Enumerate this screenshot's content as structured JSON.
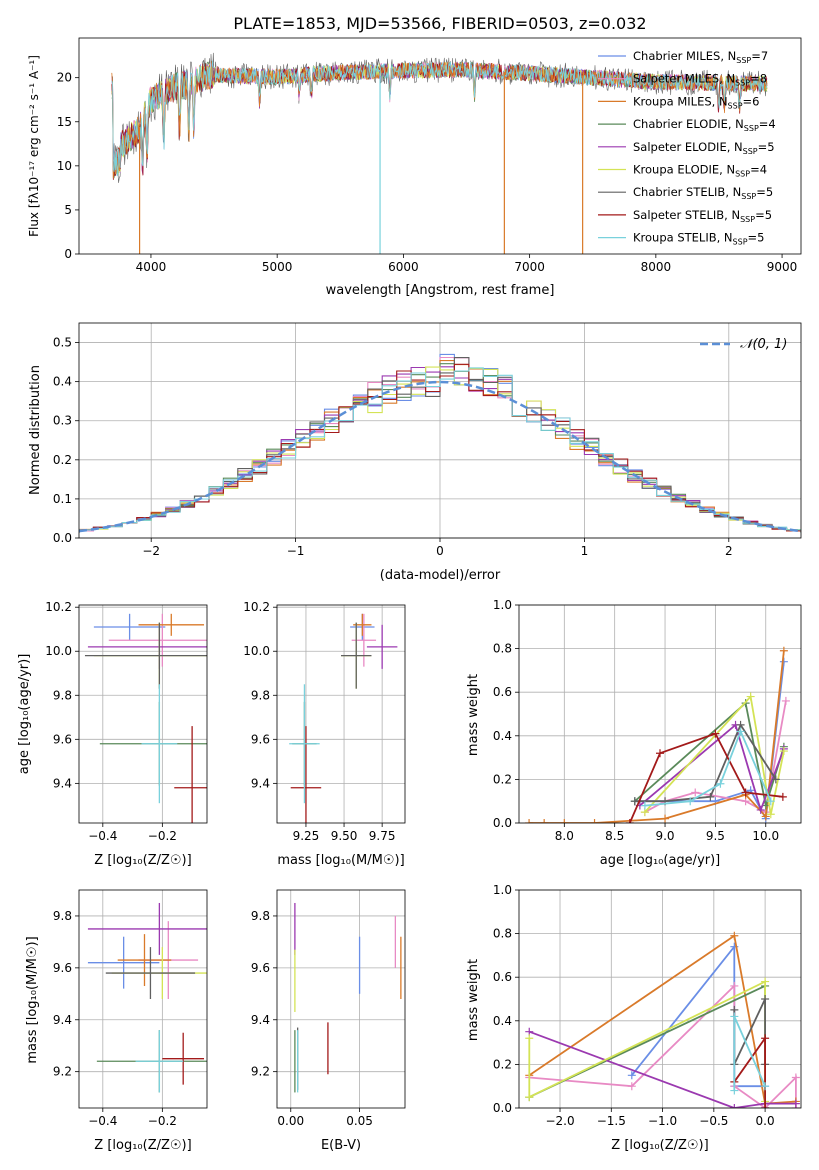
{
  "figure": {
    "title": "PLATE=1853, MJD=53566, FIBERID=0503, z=0.032",
    "colors": [
      "#6a8ee6",
      "#e88ac4",
      "#d97a2a",
      "#5a8a5a",
      "#9b39b0",
      "#d4e356",
      "#606060",
      "#a31a1a",
      "#79d1dc"
    ]
  },
  "panels": {
    "spectrum": {
      "xlabel": "wavelength [Angstrom, rest frame]",
      "ylabel": "Flux [fλ10⁻¹⁷ erg cm⁻² s⁻¹ A⁻¹]",
      "legend": [
        "Chabrier MILES, N_SSP=7",
        "Salpeter MILES, N_SSP=8",
        "Kroupa MILES, N_SSP=6",
        "Chabrier ELODIE, N_SSP=4",
        "Salpeter ELODIE, N_SSP=5",
        "Kroupa ELODIE, N_SSP=4",
        "Chabrier STELIB, N_SSP=5",
        "Salpeter STELIB, N_SSP=5",
        "Kroupa STELIB, N_SSP=5"
      ]
    },
    "hist": {
      "xlabel": "(data-model)/error",
      "ylabel": "Normed distribution",
      "legend": "𝒩(0, 1)"
    },
    "age_z": {
      "xlabel": "Z [log₁₀(Z/Z☉)]",
      "ylabel": "age  [log₁₀(age/yr)]"
    },
    "age_mass": {
      "xlabel": "mass [log₁₀(M/M☉)]"
    },
    "mw_age": {
      "xlabel": "age  [log₁₀(age/yr)]",
      "ylabel": "mass weight"
    },
    "mass_z": {
      "xlabel": "Z [log₁₀(Z/Z☉)]",
      "ylabel": "mass [log₁₀(M/M☉)]"
    },
    "mass_ebv": {
      "xlabel": "E(B-V)"
    },
    "mw_z": {
      "xlabel": "Z [log₁₀(Z/Z☉)]",
      "ylabel": "mass weight"
    }
  },
  "chart_data": [
    {
      "type": "line",
      "title": "PLATE=1853, MJD=53566, FIBERID=0503, z=0.032",
      "xlabel": "wavelength [Angstrom, rest frame]",
      "ylabel": "Flux [fλ10⁻¹⁷ erg cm⁻² s⁻¹ A⁻¹]",
      "xlim": [
        3430,
        9150
      ],
      "ylim": [
        0,
        24.5
      ],
      "xticks": [
        4000,
        5000,
        6000,
        7000,
        8000,
        9000
      ],
      "yticks": [
        0,
        5,
        10,
        15,
        20
      ],
      "continuum": {
        "wavelength": [
          3700,
          3800,
          3900,
          4000,
          4100,
          4200,
          4300,
          4400,
          4500,
          4700,
          5000,
          5500,
          6000,
          6500,
          7000,
          7500,
          8000,
          8500,
          8880
        ],
        "flux": [
          11.5,
          12.8,
          14.0,
          17.5,
          18.3,
          19.0,
          19.3,
          20.0,
          20.4,
          20.2,
          20.1,
          20.6,
          20.8,
          20.9,
          20.5,
          20.0,
          19.5,
          19.4,
          19.3
        ]
      },
      "drops": [
        {
          "series": "Kroupa MILES, N_SSP=6",
          "wavelength": 3910,
          "flux": 0
        },
        {
          "series": "Kroupa STELIB, N_SSP=5",
          "wavelength": 5815,
          "flux": 0
        },
        {
          "series": "Kroupa MILES, N_SSP=6",
          "wavelength": 6800,
          "flux": 0
        },
        {
          "series": "Kroupa MILES, N_SSP=6",
          "wavelength": 7420,
          "flux": 0
        }
      ],
      "legend": [
        "Chabrier MILES, N_SSP=7",
        "Salpeter MILES, N_SSP=8",
        "Kroupa MILES, N_SSP=6",
        "Chabrier ELODIE, N_SSP=4",
        "Salpeter ELODIE, N_SSP=5",
        "Kroupa ELODIE, N_SSP=4",
        "Chabrier STELIB, N_SSP=5",
        "Salpeter STELIB, N_SSP=5",
        "Kroupa STELIB, N_SSP=5"
      ],
      "legend_position": "top-right"
    },
    {
      "type": "histogram",
      "xlabel": "(data-model)/error",
      "ylabel": "Normed distribution",
      "xlim": [
        -2.5,
        2.5
      ],
      "ylim": [
        0,
        0.55
      ],
      "xticks": [
        -2,
        -1,
        0,
        1,
        2
      ],
      "yticks": [
        0.0,
        0.1,
        0.2,
        0.3,
        0.4,
        0.5
      ],
      "bin_width": 0.1,
      "gaussian_label": "𝒩(0, 1)",
      "grid": true,
      "legend_position": "top-right"
    },
    {
      "type": "scatter",
      "xlabel": "Z [log₁₀(Z/Z☉)]",
      "ylabel": "age  [log₁₀(age/yr)]",
      "xlim": [
        -0.48,
        -0.05
      ],
      "ylim": [
        9.22,
        10.21
      ],
      "xticks": [
        -0.4,
        -0.2
      ],
      "yticks": [
        9.4,
        9.6,
        9.8,
        10.0,
        10.2
      ],
      "points": [
        {
          "x": -0.31,
          "xerr": 0.12,
          "y": 10.11,
          "yerr": 0.06
        },
        {
          "x": -0.2,
          "xerr": 0.18,
          "y": 10.05,
          "yerr": 0.12
        },
        {
          "x": -0.17,
          "xerr": 0.11,
          "y": 10.12,
          "yerr": 0.05
        },
        {
          "x": -0.21,
          "xerr": 0.2,
          "y": 9.58,
          "yerr": 0.19
        },
        {
          "x": -0.21,
          "xerr": 0.24,
          "y": 10.02,
          "yerr": 0.1
        },
        {
          "x": -0.21,
          "xerr": 0.22,
          "y": 9.98,
          "yerr": 0.15
        },
        {
          "x": -0.21,
          "xerr": 0.25,
          "y": 9.98,
          "yerr": 0.15
        },
        {
          "x": -0.1,
          "xerr": 0.06,
          "y": 9.38,
          "yerr": 0.28
        },
        {
          "x": -0.21,
          "xerr": 0.06,
          "y": 9.58,
          "yerr": 0.27
        }
      ]
    },
    {
      "type": "scatter",
      "xlabel": "mass [log₁₀(M/M☉)]",
      "xlim": [
        9.06,
        9.9
      ],
      "ylim": [
        9.22,
        10.21
      ],
      "xticks": [
        9.25,
        9.5,
        9.75
      ],
      "yticks": [
        9.4,
        9.6,
        9.8,
        10.0,
        10.2
      ],
      "points": [
        {
          "x": 9.62,
          "xerr": 0.08,
          "y": 10.11,
          "yerr": 0.06
        },
        {
          "x": 9.63,
          "xerr": 0.08,
          "y": 10.05,
          "yerr": 0.12
        },
        {
          "x": 9.62,
          "xerr": 0.06,
          "y": 10.12,
          "yerr": 0.05
        },
        {
          "x": 9.24,
          "xerr": 0.08,
          "y": 9.58,
          "yerr": 0.19
        },
        {
          "x": 9.75,
          "xerr": 0.1,
          "y": 10.02,
          "yerr": 0.1
        },
        {
          "x": 9.58,
          "xerr": 0.1,
          "y": 9.98,
          "yerr": 0.15
        },
        {
          "x": 9.58,
          "xerr": 0.1,
          "y": 9.98,
          "yerr": 0.15
        },
        {
          "x": 9.25,
          "xerr": 0.1,
          "y": 9.38,
          "yerr": 0.28
        },
        {
          "x": 9.24,
          "xerr": 0.1,
          "y": 9.58,
          "yerr": 0.27
        }
      ]
    },
    {
      "type": "line",
      "xlabel": "age  [log₁₀(age/yr)]",
      "ylabel": "mass weight",
      "xlim": [
        7.55,
        10.35
      ],
      "ylim": [
        0,
        1.0
      ],
      "xticks": [
        8.0,
        8.5,
        9.0,
        9.5,
        10.0
      ],
      "yticks": [
        0.0,
        0.2,
        0.4,
        0.6,
        0.8,
        1.0
      ],
      "series": [
        {
          "name": "Chabrier MILES, N_SSP=7",
          "x": [
            8.7,
            9.5,
            9.85,
            10.0,
            10.18
          ],
          "y": [
            0.1,
            0.1,
            0.15,
            0.02,
            0.74
          ]
        },
        {
          "name": "Salpeter MILES, N_SSP=8",
          "x": [
            8.8,
            9.0,
            9.3,
            9.8,
            10.0,
            10.2
          ],
          "y": [
            0.05,
            0.1,
            0.14,
            0.1,
            0.05,
            0.56
          ]
        },
        {
          "name": "Kroupa MILES, N_SSP=6",
          "x": [
            7.65,
            7.8,
            8.0,
            8.3,
            9.0,
            9.8,
            10.0,
            10.18
          ],
          "y": [
            0.0,
            0.0,
            0.0,
            0.0,
            0.02,
            0.13,
            0.03,
            0.79
          ]
        },
        {
          "name": "Chabrier ELODIE, N_SSP=4",
          "x": [
            8.7,
            9.8,
            10.0,
            10.18
          ],
          "y": [
            0.1,
            0.55,
            0.08,
            0.35
          ]
        },
        {
          "name": "Salpeter ELODIE, N_SSP=5",
          "x": [
            8.75,
            9.7,
            9.95,
            10.18
          ],
          "y": [
            0.08,
            0.45,
            0.06,
            0.34
          ]
        },
        {
          "name": "Kroupa ELODIE, N_SSP=4",
          "x": [
            8.8,
            9.85,
            10.05,
            10.18
          ],
          "y": [
            0.05,
            0.58,
            0.04,
            0.33
          ]
        },
        {
          "name": "Chabrier STELIB, N_SSP=5",
          "x": [
            8.7,
            9.0,
            9.45,
            9.75,
            10.1
          ],
          "y": [
            0.1,
            0.1,
            0.12,
            0.45,
            0.2
          ]
        },
        {
          "name": "Salpeter STELIB, N_SSP=5",
          "x": [
            8.65,
            8.95,
            9.5,
            9.8,
            10.17
          ],
          "y": [
            0.0,
            0.32,
            0.41,
            0.14,
            0.12
          ]
        },
        {
          "name": "Kroupa STELIB, N_SSP=5",
          "x": [
            8.8,
            9.25,
            9.55,
            9.75,
            10.05
          ],
          "y": [
            0.08,
            0.1,
            0.18,
            0.42,
            0.1
          ]
        }
      ]
    },
    {
      "type": "scatter",
      "xlabel": "Z [log₁₀(Z/Z☉)]",
      "ylabel": "mass [log₁₀(M/M☉)]",
      "xlim": [
        -0.48,
        -0.05
      ],
      "ylim": [
        9.06,
        9.9
      ],
      "xticks": [
        -0.4,
        -0.2
      ],
      "yticks": [
        9.2,
        9.4,
        9.6,
        9.8
      ],
      "points": [
        {
          "x": -0.33,
          "xerr": 0.12,
          "y": 9.62,
          "yerr": 0.1
        },
        {
          "x": -0.18,
          "xerr": 0.1,
          "y": 9.63,
          "yerr": 0.15
        },
        {
          "x": -0.26,
          "xerr": 0.09,
          "y": 9.63,
          "yerr": 0.1
        },
        {
          "x": -0.21,
          "xerr": 0.21,
          "y": 9.24,
          "yerr": 0.12
        },
        {
          "x": -0.21,
          "xerr": 0.24,
          "y": 9.75,
          "yerr": 0.1
        },
        {
          "x": -0.2,
          "xerr": 0.17,
          "y": 9.58,
          "yerr": 0.1
        },
        {
          "x": -0.24,
          "xerr": 0.15,
          "y": 9.58,
          "yerr": 0.1
        },
        {
          "x": -0.13,
          "xerr": 0.07,
          "y": 9.25,
          "yerr": 0.1
        },
        {
          "x": -0.21,
          "xerr": 0.08,
          "y": 9.24,
          "yerr": 0.12
        }
      ]
    },
    {
      "type": "scatter",
      "xlabel": "E(B-V)",
      "xlim": [
        -0.01,
        0.083
      ],
      "ylim": [
        9.06,
        9.9
      ],
      "xticks": [
        0.0,
        0.05
      ],
      "yticks": [
        9.2,
        9.4,
        9.6,
        9.8
      ],
      "points": [
        {
          "x": 0.05,
          "y": 9.61,
          "yerr": 0.11
        },
        {
          "x": 0.076,
          "y": 9.7,
          "yerr": 0.1
        },
        {
          "x": 0.08,
          "y": 9.6,
          "yerr": 0.12
        },
        {
          "x": 0.003,
          "y": 9.24,
          "yerr": 0.12
        },
        {
          "x": 0.003,
          "y": 9.75,
          "yerr": 0.1
        },
        {
          "x": 0.003,
          "y": 9.55,
          "yerr": 0.12
        },
        {
          "x": 0.005,
          "y": 9.25,
          "yerr": 0.12
        },
        {
          "x": 0.027,
          "y": 9.29,
          "yerr": 0.1
        },
        {
          "x": 0.005,
          "y": 9.24,
          "yerr": 0.12
        }
      ]
    },
    {
      "type": "line",
      "xlabel": "Z [log₁₀(Z/Z☉)]",
      "ylabel": "mass weight",
      "xlim": [
        -2.4,
        0.35
      ],
      "ylim": [
        0,
        1.0
      ],
      "xticks": [
        -2.0,
        -1.5,
        -1.0,
        -0.5,
        0.0
      ],
      "yticks": [
        0.0,
        0.2,
        0.4,
        0.6,
        0.8,
        1.0
      ],
      "series": [
        {
          "name": "Chabrier MILES, N_SSP=7",
          "x": [
            -1.3,
            -0.3,
            -0.3,
            0.0,
            0.0
          ],
          "y": [
            0.15,
            0.74,
            0.1,
            0.1,
            0.0
          ]
        },
        {
          "name": "Salpeter MILES, N_SSP=8",
          "x": [
            -2.3,
            -1.3,
            -0.3,
            -0.3,
            0.0,
            0.3,
            0.3
          ],
          "y": [
            0.14,
            0.1,
            0.56,
            0.1,
            0.0,
            0.14,
            0.0
          ]
        },
        {
          "name": "Kroupa MILES, N_SSP=6",
          "x": [
            -2.3,
            -0.3,
            0.0,
            0.3
          ],
          "y": [
            0.15,
            0.79,
            0.02,
            0.03
          ]
        },
        {
          "name": "Chabrier ELODIE, N_SSP=4",
          "x": [
            -2.3,
            0.0,
            0.0
          ],
          "y": [
            0.05,
            0.56,
            0.02
          ]
        },
        {
          "name": "Salpeter ELODIE, N_SSP=5",
          "x": [
            -2.3,
            -0.3,
            0.0,
            0.3
          ],
          "y": [
            0.35,
            0.0,
            0.02,
            0.02
          ]
        },
        {
          "name": "Kroupa ELODIE, N_SSP=4",
          "x": [
            -2.3,
            -2.3,
            0.0,
            0.0
          ],
          "y": [
            0.32,
            0.05,
            0.58,
            0.03
          ]
        },
        {
          "name": "Chabrier STELIB, N_SSP=5",
          "x": [
            -0.3,
            -0.3,
            0.0,
            0.0
          ],
          "y": [
            0.45,
            0.2,
            0.5,
            0.2
          ]
        },
        {
          "name": "Salpeter STELIB, N_SSP=5",
          "x": [
            -0.3,
            0.0,
            0.0
          ],
          "y": [
            0.12,
            0.32,
            0.0
          ]
        },
        {
          "name": "Kroupa STELIB, N_SSP=5",
          "x": [
            -0.3,
            -0.3,
            0.0
          ],
          "y": [
            0.08,
            0.42,
            0.1
          ]
        }
      ]
    }
  ]
}
